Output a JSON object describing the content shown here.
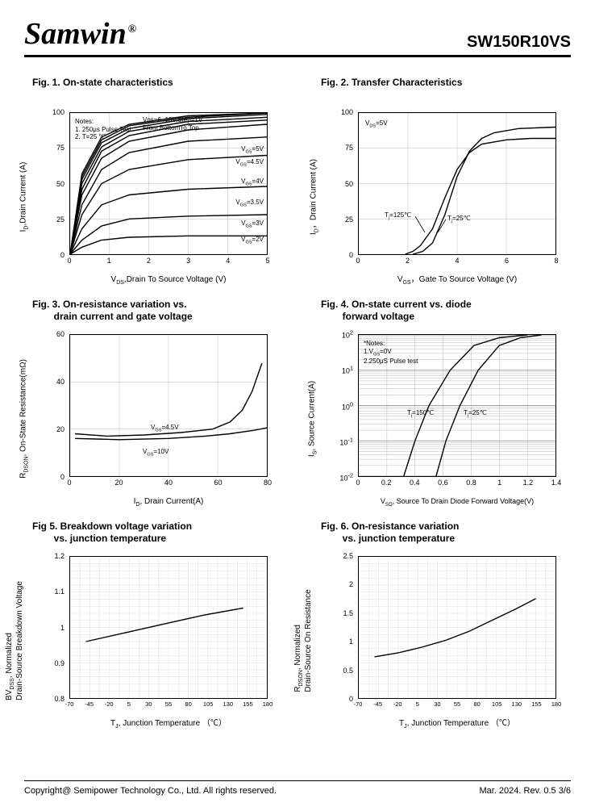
{
  "header": {
    "logo": "Samwin",
    "reg": "®",
    "part_number": "SW150R10VS"
  },
  "footer": {
    "copyright": "Copyright@ Semipower Technology Co., Ltd. All rights reserved.",
    "rev": "Mar. 2024. Rev. 0.5    3/6"
  },
  "fig1": {
    "title": "Fig. 1. On-state characteristics",
    "xlabel": "V_DS, Drain To Source Voltage (V)",
    "ylabel": "I_D, Drain Current (A)",
    "xlim": [
      0,
      5
    ],
    "xticks": [
      0,
      1,
      2,
      3,
      4,
      5
    ],
    "ylim": [
      0,
      100
    ],
    "yticks": [
      0,
      25,
      50,
      75,
      100
    ],
    "note_lines": [
      "Notes:",
      "1. 250μs Pulse Test",
      "2. T=25 ℃"
    ],
    "top_label": "Vgs=6~10V,Step=1V\nFrom BottomTo Top",
    "curve_labels": [
      "V_GS=5V",
      "V_GS=4.5V",
      "V_GS=4V",
      "V_GS=3.5V",
      "V_GS=3V",
      "V_GS=2V"
    ],
    "curves": [
      [
        [
          0,
          0
        ],
        [
          0.3,
          5
        ],
        [
          0.8,
          10
        ],
        [
          1.5,
          12
        ],
        [
          3,
          13
        ],
        [
          5,
          13
        ]
      ],
      [
        [
          0,
          0
        ],
        [
          0.3,
          10
        ],
        [
          0.8,
          20
        ],
        [
          1.5,
          25
        ],
        [
          3,
          27
        ],
        [
          5,
          28
        ]
      ],
      [
        [
          0,
          0
        ],
        [
          0.3,
          18
        ],
        [
          0.8,
          35
        ],
        [
          1.5,
          42
        ],
        [
          3,
          46
        ],
        [
          5,
          48
        ]
      ],
      [
        [
          0,
          0
        ],
        [
          0.3,
          28
        ],
        [
          0.8,
          50
        ],
        [
          1.5,
          60
        ],
        [
          3,
          67
        ],
        [
          5,
          70
        ]
      ],
      [
        [
          0,
          0
        ],
        [
          0.3,
          35
        ],
        [
          0.8,
          60
        ],
        [
          1.5,
          72
        ],
        [
          3,
          80
        ],
        [
          5,
          83
        ]
      ],
      [
        [
          0,
          0
        ],
        [
          0.3,
          42
        ],
        [
          0.8,
          68
        ],
        [
          1.5,
          80
        ],
        [
          3,
          88
        ],
        [
          5,
          92
        ]
      ],
      [
        [
          0,
          0
        ],
        [
          0.3,
          46
        ],
        [
          0.8,
          73
        ],
        [
          1.5,
          84
        ],
        [
          3,
          92
        ],
        [
          5,
          95
        ]
      ],
      [
        [
          0,
          0
        ],
        [
          0.3,
          50
        ],
        [
          0.8,
          76
        ],
        [
          1.5,
          87
        ],
        [
          3,
          94
        ],
        [
          5,
          97
        ]
      ],
      [
        [
          0,
          0
        ],
        [
          0.3,
          53
        ],
        [
          0.8,
          79
        ],
        [
          1.5,
          89
        ],
        [
          3,
          96
        ],
        [
          5,
          99
        ]
      ],
      [
        [
          0,
          0
        ],
        [
          0.3,
          55
        ],
        [
          0.8,
          81
        ],
        [
          1.5,
          91
        ],
        [
          3,
          97
        ],
        [
          5,
          100
        ]
      ],
      [
        [
          0,
          0
        ],
        [
          0.3,
          57
        ],
        [
          0.8,
          83
        ],
        [
          1.5,
          92
        ],
        [
          3,
          98
        ],
        [
          5,
          100
        ]
      ]
    ]
  },
  "fig2": {
    "title": "Fig. 2. Transfer Characteristics",
    "xlabel": "V_GS,  Gate To Source Voltage (V)",
    "ylabel": "I_D,  Drain Current (A)",
    "xlim": [
      0,
      8
    ],
    "xticks": [
      0,
      2,
      4,
      6,
      8
    ],
    "ylim": [
      0,
      100
    ],
    "yticks": [
      0,
      25,
      50,
      75,
      100
    ],
    "cond": "V_DS=5V",
    "curve_labels": [
      "T_j=125℃",
      "T_j=25℃"
    ],
    "curves": [
      [
        [
          1.9,
          0
        ],
        [
          2.2,
          2
        ],
        [
          2.5,
          6
        ],
        [
          3.0,
          18
        ],
        [
          3.5,
          40
        ],
        [
          4.0,
          60
        ],
        [
          4.5,
          72
        ],
        [
          5.0,
          78
        ],
        [
          6.0,
          81
        ],
        [
          7.0,
          82
        ],
        [
          8.0,
          82
        ]
      ],
      [
        [
          2.2,
          0
        ],
        [
          2.6,
          2
        ],
        [
          3.0,
          8
        ],
        [
          3.5,
          28
        ],
        [
          4.0,
          55
        ],
        [
          4.5,
          73
        ],
        [
          5.0,
          82
        ],
        [
          5.5,
          86
        ],
        [
          6.5,
          89
        ],
        [
          8.0,
          90
        ]
      ]
    ]
  },
  "fig3": {
    "title_l1": "Fig. 3. On-resistance variation vs.",
    "title_l2": "drain current and gate voltage",
    "xlabel": "I_D, Drain Current(A)",
    "ylabel": "R_DSON, On-State Resistance(mΩ)",
    "xlim": [
      0,
      80
    ],
    "xticks": [
      0,
      20,
      40,
      60,
      80
    ],
    "ylim": [
      0,
      60
    ],
    "yticks": [
      0.0,
      20.0,
      40.0,
      60.0
    ],
    "curve_labels": [
      "V_GS=4.5V",
      "V_GS=10V"
    ],
    "curves": [
      [
        [
          2,
          18
        ],
        [
          15,
          17
        ],
        [
          30,
          17.5
        ],
        [
          45,
          18.5
        ],
        [
          58,
          20
        ],
        [
          65,
          23
        ],
        [
          70,
          28
        ],
        [
          74,
          36
        ],
        [
          78,
          48
        ]
      ],
      [
        [
          2,
          16
        ],
        [
          20,
          15.5
        ],
        [
          40,
          16
        ],
        [
          55,
          17
        ],
        [
          65,
          18
        ],
        [
          75,
          19.5
        ],
        [
          80,
          20.5
        ]
      ]
    ]
  },
  "fig4": {
    "title_l1": "Fig. 4. On-state current vs. diode",
    "title_l2": "forward voltage",
    "xlabel": "V_SD, Source To Drain Diode Forward Voltage(V)",
    "ylabel": "I_S, Source Current(A)",
    "xlim": [
      0,
      1.4
    ],
    "xticks": [
      0,
      0.2,
      0.4,
      0.6,
      0.8,
      1.0,
      1.2,
      1.4
    ],
    "ylim_log": [
      -2,
      2
    ],
    "ytick_labels": [
      "10^-2",
      "10^-1",
      "10^0",
      "10^1",
      "10^2"
    ],
    "note_lines": [
      "*Notes:",
      "1.V_GS=0V",
      "2.250μS Pulse test"
    ],
    "curve_labels": [
      "T_j=150℃",
      "T_j=25℃"
    ],
    "curves": [
      [
        [
          0.32,
          -2
        ],
        [
          0.4,
          -1
        ],
        [
          0.5,
          0
        ],
        [
          0.65,
          1
        ],
        [
          0.82,
          1.7
        ],
        [
          1.0,
          1.92
        ],
        [
          1.2,
          2
        ]
      ],
      [
        [
          0.55,
          -2
        ],
        [
          0.62,
          -1
        ],
        [
          0.72,
          0
        ],
        [
          0.85,
          1
        ],
        [
          1.0,
          1.7
        ],
        [
          1.15,
          1.92
        ],
        [
          1.3,
          2
        ]
      ]
    ]
  },
  "fig5": {
    "title_l1": "Fig 5. Breakdown voltage variation",
    "title_l2": "vs. junction temperature",
    "xlabel": "T_J, Junction Temperature （℃）",
    "ylabel": "BV_DSS, Normalized\nDrain-Source Breakdown Voltage",
    "xlim": [
      -70,
      180
    ],
    "xticks": [
      -70,
      -45,
      -20,
      5,
      30,
      55,
      80,
      105,
      130,
      155,
      180
    ],
    "ylim": [
      0.8,
      1.2
    ],
    "yticks": [
      0.8,
      0.9,
      1.0,
      1.1,
      1.2
    ],
    "curves": [
      [
        [
          -50,
          0.96
        ],
        [
          0,
          0.985
        ],
        [
          50,
          1.01
        ],
        [
          100,
          1.035
        ],
        [
          150,
          1.055
        ]
      ]
    ]
  },
  "fig6": {
    "title_l1": "Fig. 6. On-resistance variation",
    "title_l2": "vs. junction temperature",
    "xlabel": "T_J, Junction Temperature （℃）",
    "ylabel": "R_DSON, Normalized\nDrain-Source On Resistance",
    "xlim": [
      -70,
      180
    ],
    "xticks": [
      -70,
      -45,
      -20,
      5,
      30,
      55,
      80,
      105,
      130,
      155,
      180
    ],
    "ylim": [
      0,
      2.5
    ],
    "yticks": [
      0,
      0.5,
      1.0,
      1.5,
      2.0,
      2.5
    ],
    "curves": [
      [
        [
          -50,
          0.73
        ],
        [
          -20,
          0.8
        ],
        [
          10,
          0.9
        ],
        [
          40,
          1.02
        ],
        [
          70,
          1.18
        ],
        [
          100,
          1.38
        ],
        [
          130,
          1.58
        ],
        [
          155,
          1.76
        ]
      ]
    ]
  }
}
